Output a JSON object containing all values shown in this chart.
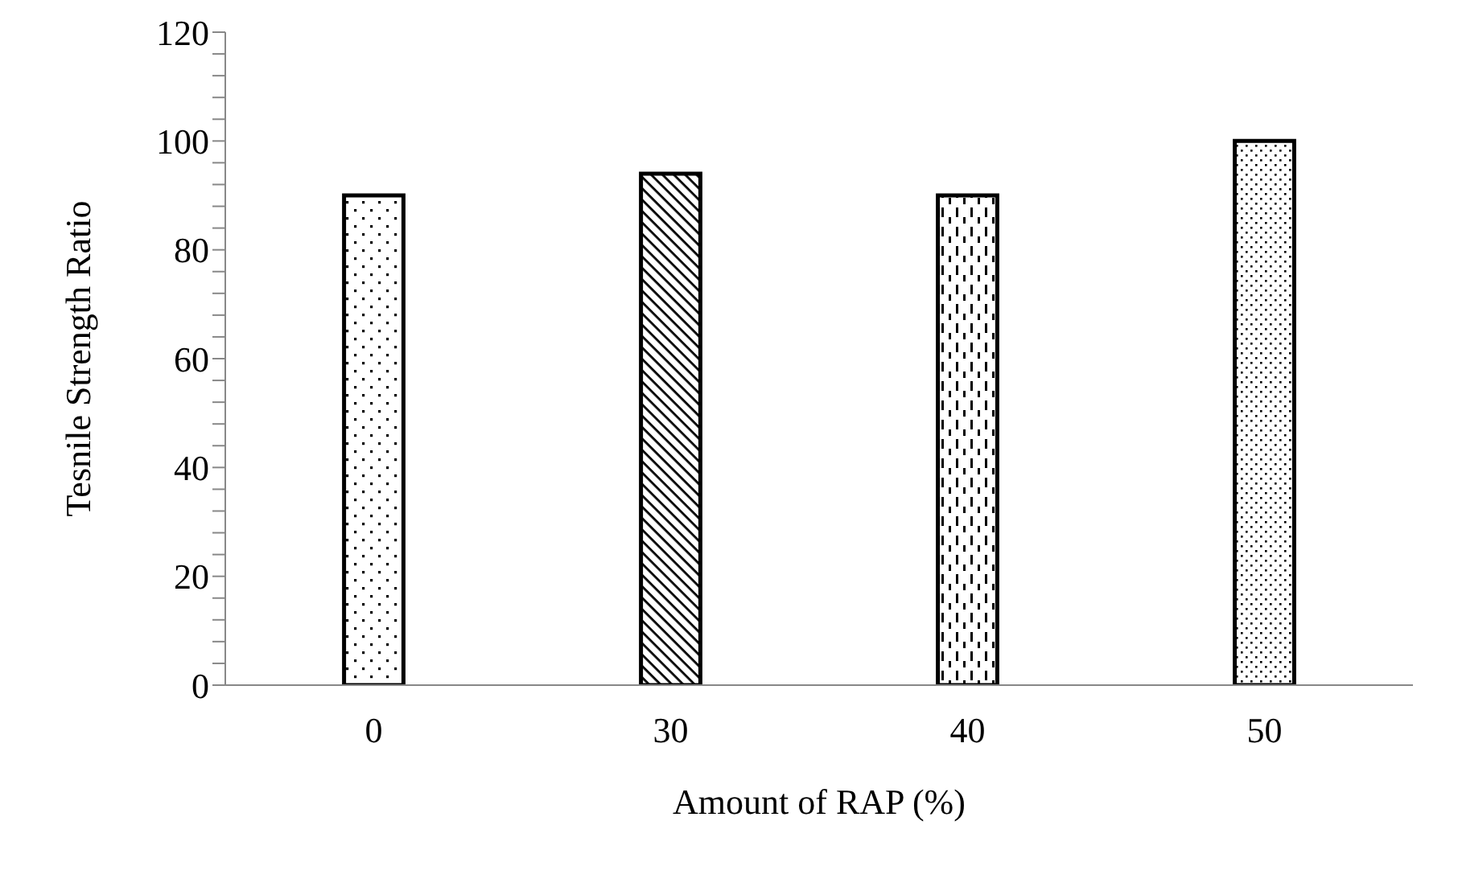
{
  "chart_data": {
    "type": "bar",
    "xlabel": "Amount of RAP (%)",
    "ylabel": "Tesnile  Strength Ratio",
    "categories": [
      "0",
      "30",
      "40",
      "50"
    ],
    "values": [
      90,
      94,
      90,
      100
    ],
    "color": "#000000",
    "ylim": [
      0,
      120
    ],
    "yticks": [
      0,
      {
        "value": 4,
        "label": null
      },
      {
        "value": 8,
        "label": null
      },
      {
        "value": 12,
        "label": null
      },
      {
        "value": 16,
        "label": null
      },
      20,
      {
        "value": 24,
        "label": null
      },
      {
        "value": 28,
        "label": null
      },
      {
        "value": 32,
        "label": null
      },
      {
        "value": 36,
        "label": null
      },
      40,
      {
        "value": 44,
        "label": null
      },
      {
        "value": 48,
        "label": null
      },
      {
        "value": 52,
        "label": null
      },
      {
        "value": 56,
        "label": null
      },
      60,
      {
        "value": 64,
        "label": null
      },
      {
        "value": 68,
        "label": null
      },
      {
        "value": 72,
        "label": null
      },
      {
        "value": 76,
        "label": null
      },
      80,
      {
        "value": 84,
        "label": null
      },
      {
        "value": 88,
        "label": null
      },
      {
        "value": 92,
        "label": null
      },
      {
        "value": 96,
        "label": null
      },
      100,
      {
        "value": 104,
        "label": null
      },
      {
        "value": 108,
        "label": null
      },
      {
        "value": 112,
        "label": null
      },
      {
        "value": 116,
        "label": null
      },
      120
    ],
    "grid": false,
    "legend": false
  }
}
